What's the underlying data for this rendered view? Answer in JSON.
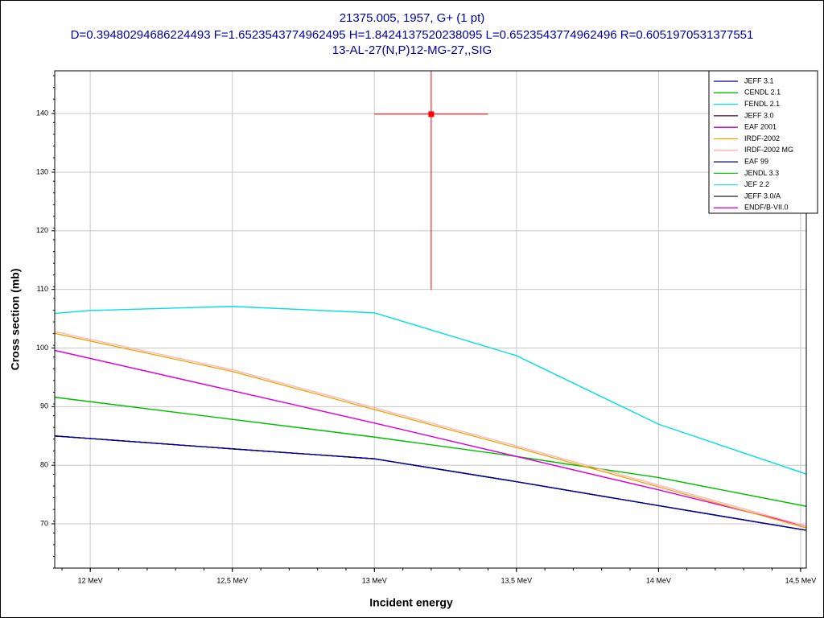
{
  "chart_data": {
    "type": "line",
    "title_lines": [
      "21375.005, 1957, G+ (1 pt)",
      "D=0.39480294686224493 F=1.6523543774962495 H=1.8424137520238095 L=0.6523543774962496 R=0.6051970531377551",
      "13-AL-27(N,P)12-MG-27,,SIG"
    ],
    "x_label": "Incident energy",
    "y_label": "Cross section (mb)",
    "xlim": [
      11.875,
      14.52
    ],
    "ylim": [
      62.45,
      147.3
    ],
    "xticks": [
      {
        "value": 12,
        "label": "12 MeV"
      },
      {
        "value": 12.5,
        "label": "12,5 MeV"
      },
      {
        "value": 13,
        "label": "13 MeV"
      },
      {
        "value": 13.5,
        "label": "13,5 MeV"
      },
      {
        "value": 14,
        "label": "14 MeV"
      },
      {
        "value": 14.5,
        "label": "14,5 MeV"
      }
    ],
    "yticks": [
      70,
      80,
      90,
      100,
      110,
      120,
      130,
      140
    ],
    "grid": true,
    "legend": "top-right",
    "series": [
      {
        "name": "JEFF 3.1",
        "color": "#0000a0",
        "x": [
          11.875,
          12.5,
          13,
          13.5,
          14,
          14.52
        ],
        "values": [
          85,
          82.8,
          81.1,
          77.2,
          73.1,
          68.9
        ]
      },
      {
        "name": "CENDL 2.1",
        "color": "#00c000",
        "x": [
          11.875,
          13,
          13.5,
          14,
          14.52
        ],
        "values": [
          91.6,
          84.8,
          81.5,
          77.9,
          73
        ]
      },
      {
        "name": "FENDL 2.1",
        "color": "#00e0e0",
        "x": [
          11.875,
          12,
          12.5,
          13,
          13.5,
          14,
          14.52
        ],
        "values": [
          105.9,
          106.4,
          107.1,
          106,
          98.7,
          87,
          78.5
        ]
      },
      {
        "name": "JEFF 3.0",
        "color": "#400040",
        "x": [
          11.875,
          12.5,
          13,
          13.5,
          14,
          14.52
        ],
        "values": [
          85,
          82.8,
          81.1,
          77.2,
          73.1,
          68.9
        ]
      },
      {
        "name": "EAF 2001",
        "color": "#c000c0",
        "x": [
          11.875,
          13,
          13.5,
          14,
          14.52
        ],
        "values": [
          99.6,
          87.2,
          81.5,
          75.8,
          69.6
        ]
      },
      {
        "name": "IRDF-2002",
        "color": "#f0a000",
        "x": [
          11.875,
          12.5,
          13,
          13.5,
          14,
          14.52
        ],
        "values": [
          102.5,
          96,
          89.5,
          83,
          76.3,
          69.3
        ]
      },
      {
        "name": "IRDF-2002 MG",
        "color": "#ffb0b0",
        "x": [
          11.875,
          12.5,
          13,
          13.5,
          14,
          14.52
        ],
        "values": [
          102.8,
          96.3,
          89.8,
          83.3,
          76.6,
          69.6
        ]
      },
      {
        "name": "EAF 99",
        "color": "#000060",
        "x": [
          11.875,
          12.5,
          13,
          13.5,
          14,
          14.52
        ],
        "values": [
          85,
          82.8,
          81.1,
          77.2,
          73.1,
          68.9
        ]
      },
      {
        "name": "JENDL 3.3",
        "color": "#20c020",
        "x": [
          11.875,
          13,
          13.5,
          14,
          14.52
        ],
        "values": [
          91.6,
          84.8,
          81.5,
          77.9,
          73
        ]
      },
      {
        "name": "JEF 2.2",
        "color": "#40e0f0",
        "x": [
          11.875,
          12,
          12.5,
          13,
          13.5,
          14,
          14.52
        ],
        "values": [
          105.9,
          106.4,
          107.1,
          106,
          98.7,
          87,
          78.5
        ]
      },
      {
        "name": "JEFF 3.0/A",
        "color": "#202020",
        "x": [
          11.875,
          12.5,
          13,
          13.5,
          14,
          14.52
        ],
        "values": [
          85,
          82.8,
          81.1,
          77.2,
          73.1,
          68.9
        ]
      },
      {
        "name": "ENDF/B-VII.0",
        "color": "#e000e0",
        "x": [
          11.875,
          13,
          13.5,
          14,
          14.52
        ],
        "values": [
          99.6,
          87.2,
          81.5,
          75.8,
          69.6
        ]
      }
    ],
    "experiment": {
      "color": "#ff0000",
      "x": [
        13.2
      ],
      "y": [
        139.9
      ],
      "xerr": [
        0.2
      ],
      "yerr": [
        30
      ]
    }
  }
}
